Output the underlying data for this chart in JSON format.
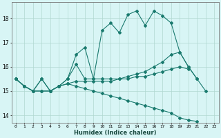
{
  "xlabel": "Humidex (Indice chaleur)",
  "bg_color": "#d8f5f5",
  "line_color": "#1a7a6e",
  "grid_color": "#b0d8d0",
  "xlim": [
    -0.5,
    23.5
  ],
  "ylim": [
    13.7,
    18.65
  ],
  "xticks": [
    0,
    1,
    2,
    3,
    4,
    5,
    6,
    7,
    8,
    9,
    10,
    11,
    12,
    13,
    14,
    15,
    16,
    17,
    18,
    19,
    20,
    21,
    22,
    23
  ],
  "yticks": [
    14,
    15,
    16,
    17,
    18
  ],
  "series1_x": [
    0,
    1,
    2,
    3,
    4,
    5,
    6,
    7,
    8,
    9,
    10,
    11,
    12,
    13,
    14,
    15,
    16,
    17,
    18,
    19,
    20,
    21,
    22
  ],
  "series1_y": [
    15.5,
    15.2,
    15.0,
    15.5,
    15.0,
    15.2,
    15.5,
    16.5,
    16.8,
    15.5,
    17.5,
    17.8,
    17.4,
    18.15,
    18.3,
    17.7,
    18.3,
    18.1,
    17.8,
    16.6,
    16.0,
    15.5,
    15.0
  ],
  "series2_x": [
    0,
    1,
    2,
    3,
    4,
    5,
    6,
    7,
    8,
    9,
    10,
    11,
    12,
    13,
    14,
    15,
    16,
    17,
    18,
    19,
    20,
    21,
    22
  ],
  "series2_y": [
    15.5,
    15.2,
    15.0,
    15.5,
    15.0,
    15.2,
    15.5,
    16.1,
    15.5,
    15.5,
    15.5,
    15.5,
    15.5,
    15.6,
    15.7,
    15.8,
    16.0,
    16.2,
    16.5,
    16.6,
    16.0,
    15.5,
    null
  ],
  "series3_x": [
    0,
    1,
    2,
    3,
    4,
    5,
    6,
    7,
    8,
    9,
    10,
    11,
    12,
    13,
    14,
    15,
    16,
    17,
    18,
    19,
    20,
    21,
    22
  ],
  "series3_y": [
    15.5,
    15.2,
    15.0,
    15.0,
    15.0,
    15.2,
    15.3,
    15.4,
    15.4,
    15.4,
    15.4,
    15.4,
    15.5,
    15.5,
    15.6,
    15.6,
    15.7,
    15.8,
    15.9,
    16.0,
    15.9,
    null,
    null
  ],
  "series4_x": [
    0,
    1,
    2,
    3,
    4,
    5,
    6,
    7,
    8,
    9,
    10,
    11,
    12,
    13,
    14,
    15,
    16,
    17,
    18,
    19,
    20,
    21,
    22,
    23
  ],
  "series4_y": [
    15.5,
    15.2,
    15.0,
    15.0,
    15.0,
    15.2,
    15.3,
    15.2,
    15.1,
    15.0,
    14.9,
    14.8,
    14.7,
    14.6,
    14.5,
    14.4,
    14.3,
    14.2,
    14.1,
    13.9,
    13.8,
    13.75,
    null,
    null
  ]
}
